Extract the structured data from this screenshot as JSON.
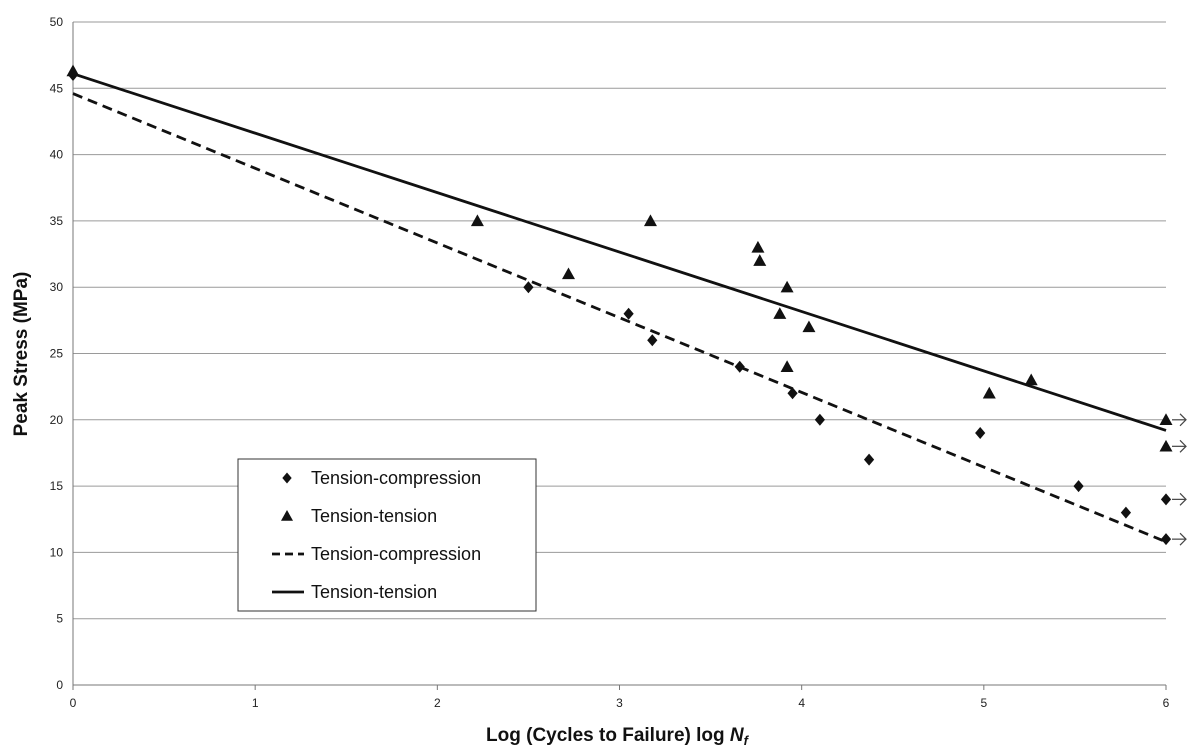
{
  "chart_data": {
    "type": "scatter",
    "title": "",
    "xlabel": "Log (Cycles to Failure) log ",
    "xlabel_symbol": "N",
    "xlabel_subscript": "f",
    "ylabel": "Peak Stress (MPa)",
    "xlim": [
      0,
      6
    ],
    "ylim": [
      0,
      50
    ],
    "x_ticks": [
      0,
      1,
      2,
      3,
      4,
      5,
      6
    ],
    "y_ticks": [
      0,
      5,
      10,
      15,
      20,
      25,
      30,
      35,
      40,
      45,
      50
    ],
    "grid": "horizontal",
    "legend_position": "lower-left",
    "series": [
      {
        "name": "Tension-compression",
        "kind": "points",
        "marker": "diamond",
        "points": [
          {
            "x": 0,
            "y": 46
          },
          {
            "x": 2.5,
            "y": 30
          },
          {
            "x": 3.05,
            "y": 28
          },
          {
            "x": 3.18,
            "y": 26
          },
          {
            "x": 3.66,
            "y": 24
          },
          {
            "x": 3.95,
            "y": 22
          },
          {
            "x": 4.1,
            "y": 20
          },
          {
            "x": 4.37,
            "y": 17
          },
          {
            "x": 4.98,
            "y": 19
          },
          {
            "x": 5.52,
            "y": 15
          },
          {
            "x": 5.78,
            "y": 13
          },
          {
            "x": 6,
            "y": 14,
            "runout": true
          },
          {
            "x": 6,
            "y": 11,
            "runout": true
          }
        ]
      },
      {
        "name": "Tension-tension",
        "kind": "points",
        "marker": "triangle",
        "points": [
          {
            "x": 0,
            "y": 46.3
          },
          {
            "x": 2.22,
            "y": 35
          },
          {
            "x": 2.72,
            "y": 31
          },
          {
            "x": 3.17,
            "y": 35
          },
          {
            "x": 3.76,
            "y": 33
          },
          {
            "x": 3.77,
            "y": 32
          },
          {
            "x": 3.88,
            "y": 28
          },
          {
            "x": 3.92,
            "y": 30
          },
          {
            "x": 3.92,
            "y": 24
          },
          {
            "x": 4.04,
            "y": 27
          },
          {
            "x": 5.03,
            "y": 22
          },
          {
            "x": 5.26,
            "y": 23
          },
          {
            "x": 6,
            "y": 20,
            "runout": true
          },
          {
            "x": 6,
            "y": 18,
            "runout": true
          }
        ]
      },
      {
        "name": "Tension-compression",
        "kind": "line",
        "style": "dashed",
        "points": [
          {
            "x": 0,
            "y": 44.6
          },
          {
            "x": 6,
            "y": 10.8
          }
        ]
      },
      {
        "name": "Tension-tension",
        "kind": "line",
        "style": "solid",
        "points": [
          {
            "x": 0,
            "y": 46.1
          },
          {
            "x": 6,
            "y": 19.2
          }
        ]
      }
    ]
  }
}
